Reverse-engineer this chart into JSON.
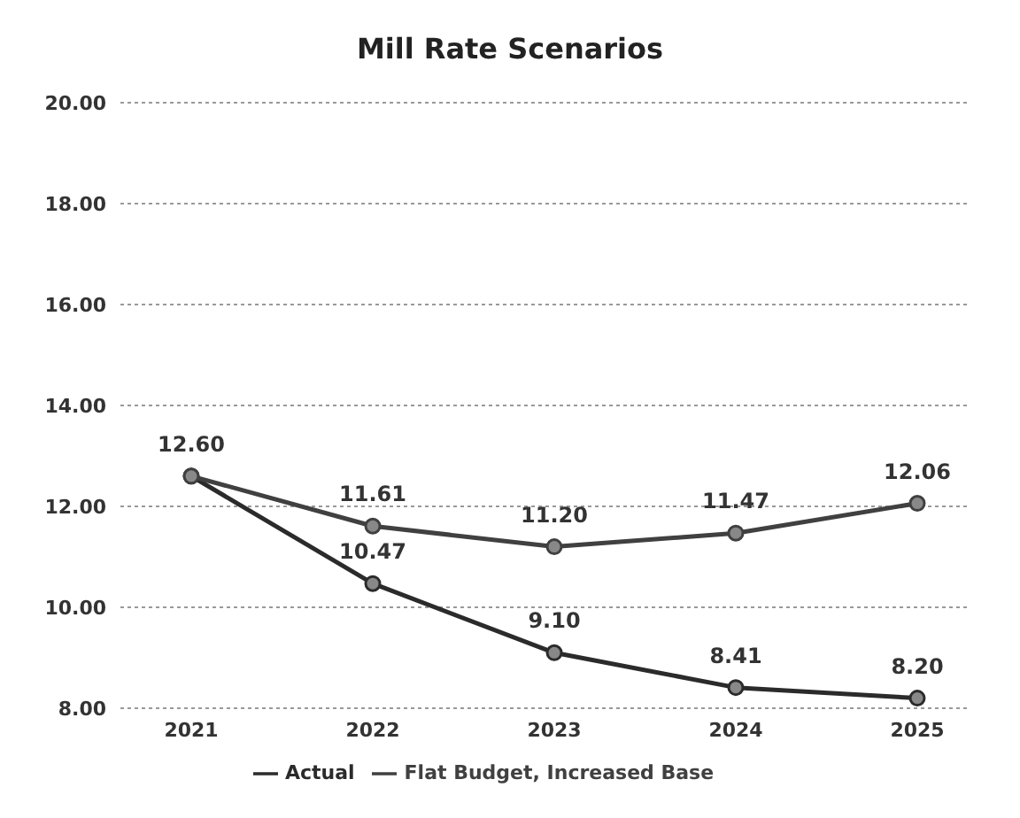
{
  "chart_data": {
    "type": "line",
    "title": "Mill Rate Scenarios",
    "categories": [
      "2021",
      "2022",
      "2023",
      "2024",
      "2025"
    ],
    "series": [
      {
        "name": "Actual",
        "color": "#2b2b2b",
        "values": [
          12.6,
          10.47,
          9.1,
          8.41,
          8.2
        ],
        "value_labels": [
          "12.60",
          "10.47",
          "9.10",
          "8.41",
          "8.20"
        ]
      },
      {
        "name": "Flat Budget, Increased Base",
        "color": "#404040",
        "values": [
          12.6,
          11.61,
          11.2,
          11.47,
          12.06
        ],
        "value_labels": [
          null,
          "11.61",
          "11.20",
          "11.47",
          "12.06"
        ]
      }
    ],
    "ylim": [
      8,
      20
    ],
    "yticks": [
      {
        "value": 8,
        "label": "8.00"
      },
      {
        "value": 10,
        "label": "10.00"
      },
      {
        "value": 12,
        "label": "12.00"
      },
      {
        "value": 14,
        "label": "14.00"
      },
      {
        "value": 16,
        "label": "16.00"
      },
      {
        "value": 18,
        "label": "18.00"
      },
      {
        "value": 20,
        "label": "20.00"
      }
    ],
    "grid": "y",
    "legend": "bottom",
    "marker": "circle",
    "line_style": "solid"
  }
}
